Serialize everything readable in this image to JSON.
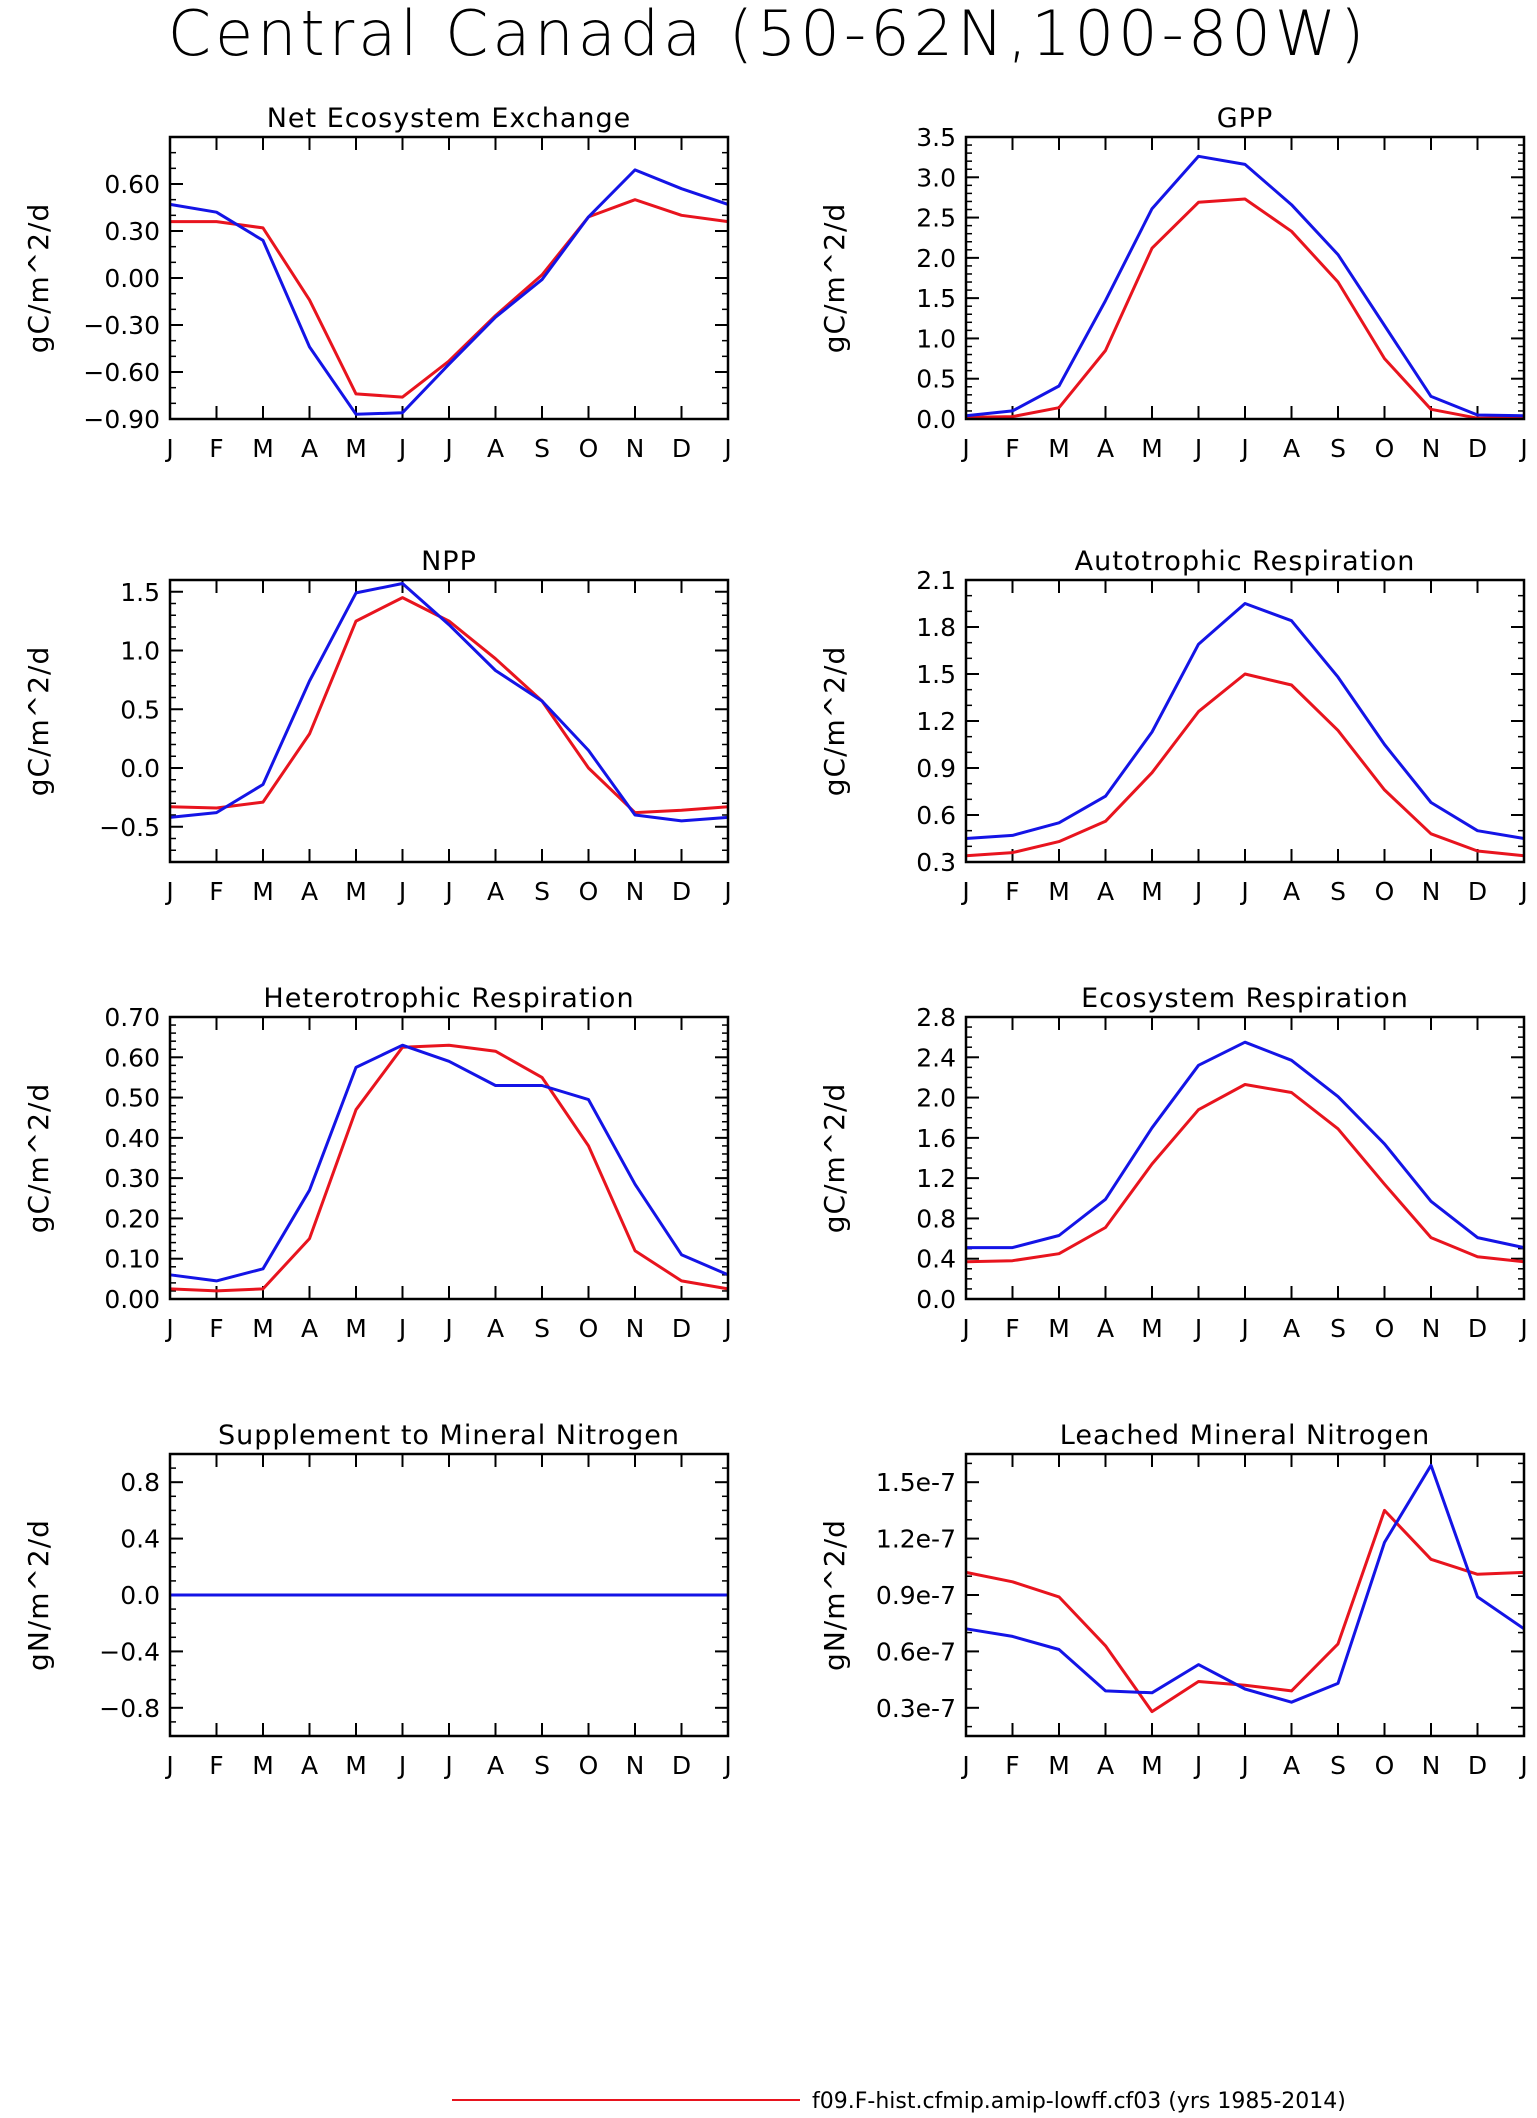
{
  "page": {
    "title": "Central Canada (50-62N,100-80W)"
  },
  "months": [
    "J",
    "F",
    "M",
    "A",
    "M",
    "J",
    "J",
    "A",
    "S",
    "O",
    "N",
    "D",
    "J"
  ],
  "legend": {
    "red_label": "f09.F-hist.cfmip.amip-lowff.cf03 (yrs 1985-2014)"
  },
  "colors": {
    "red": "#e8141e",
    "blue": "#1414e6",
    "axis": "#000000"
  },
  "chart_data": [
    {
      "type": "line",
      "title": "Net Ecosystem Exchange",
      "ylabel": "gC/m^2/d",
      "ylim": [
        -0.9,
        0.9
      ],
      "yticks": [
        -0.9,
        -0.6,
        -0.3,
        0.0,
        0.3,
        0.6
      ],
      "ytick_labels": [
        "-0.90",
        "-0.60",
        "-0.30",
        "0.00",
        "0.30",
        "0.60"
      ],
      "minor_step": 0.1,
      "series": [
        {
          "color": "red",
          "values": [
            0.36,
            0.36,
            0.32,
            -0.14,
            -0.74,
            -0.76,
            -0.53,
            -0.24,
            0.02,
            0.39,
            0.5,
            0.4,
            0.36
          ]
        },
        {
          "color": "blue",
          "values": [
            0.47,
            0.42,
            0.24,
            -0.44,
            -0.87,
            -0.86,
            -0.55,
            -0.25,
            -0.01,
            0.39,
            0.69,
            0.57,
            0.47
          ]
        }
      ]
    },
    {
      "type": "line",
      "title": "GPP",
      "ylabel": "gC/m^2/d",
      "ylim": [
        0.0,
        3.5
      ],
      "yticks": [
        0.0,
        0.5,
        1.0,
        1.5,
        2.0,
        2.5,
        3.0,
        3.5
      ],
      "ytick_labels": [
        "0.0",
        "0.5",
        "1.0",
        "1.5",
        "2.0",
        "2.5",
        "3.0",
        "3.5"
      ],
      "minor_step": 0.1,
      "series": [
        {
          "color": "red",
          "values": [
            0.02,
            0.03,
            0.14,
            0.85,
            2.12,
            2.69,
            2.73,
            2.33,
            1.7,
            0.75,
            0.12,
            0.01,
            0.02
          ]
        },
        {
          "color": "blue",
          "values": [
            0.04,
            0.1,
            0.41,
            1.47,
            2.61,
            3.26,
            3.16,
            2.66,
            2.04,
            1.16,
            0.28,
            0.05,
            0.04
          ]
        }
      ]
    },
    {
      "type": "line",
      "title": "NPP",
      "ylabel": "gC/m^2/d",
      "ylim": [
        -0.8,
        1.6
      ],
      "yticks": [
        -0.5,
        0.0,
        0.5,
        1.0,
        1.5
      ],
      "ytick_labels": [
        "-0.5",
        "0.0",
        "0.5",
        "1.0",
        "1.5"
      ],
      "minor_step": 0.1,
      "series": [
        {
          "color": "red",
          "values": [
            -0.33,
            -0.34,
            -0.29,
            0.29,
            1.25,
            1.45,
            1.25,
            0.93,
            0.57,
            0.0,
            -0.38,
            -0.36,
            -0.33
          ]
        },
        {
          "color": "blue",
          "values": [
            -0.42,
            -0.38,
            -0.14,
            0.74,
            1.49,
            1.57,
            1.22,
            0.83,
            0.57,
            0.15,
            -0.4,
            -0.45,
            -0.42
          ]
        }
      ]
    },
    {
      "type": "line",
      "title": "Autotrophic Respiration",
      "ylabel": "gC/m^2/d",
      "ylim": [
        0.3,
        2.1
      ],
      "yticks": [
        0.3,
        0.6,
        0.9,
        1.2,
        1.5,
        1.8,
        2.1
      ],
      "ytick_labels": [
        "0.3",
        "0.6",
        "0.9",
        "1.2",
        "1.5",
        "1.8",
        "2.1"
      ],
      "minor_step": 0.1,
      "series": [
        {
          "color": "red",
          "values": [
            0.34,
            0.36,
            0.43,
            0.56,
            0.87,
            1.26,
            1.5,
            1.43,
            1.14,
            0.76,
            0.48,
            0.37,
            0.34
          ]
        },
        {
          "color": "blue",
          "values": [
            0.45,
            0.47,
            0.55,
            0.72,
            1.13,
            1.69,
            1.95,
            1.84,
            1.48,
            1.05,
            0.68,
            0.5,
            0.45
          ]
        }
      ]
    },
    {
      "type": "line",
      "title": "Heterotrophic Respiration",
      "ylabel": "gC/m^2/d",
      "ylim": [
        0.0,
        0.7
      ],
      "yticks": [
        0.0,
        0.1,
        0.2,
        0.3,
        0.4,
        0.5,
        0.6,
        0.7
      ],
      "ytick_labels": [
        "0.00",
        "0.10",
        "0.20",
        "0.30",
        "0.40",
        "0.50",
        "0.60",
        "0.70"
      ],
      "minor_step": 0.02,
      "series": [
        {
          "color": "red",
          "values": [
            0.025,
            0.02,
            0.025,
            0.15,
            0.47,
            0.625,
            0.63,
            0.615,
            0.55,
            0.38,
            0.12,
            0.045,
            0.025
          ]
        },
        {
          "color": "blue",
          "values": [
            0.06,
            0.045,
            0.075,
            0.27,
            0.575,
            0.63,
            0.59,
            0.53,
            0.53,
            0.495,
            0.285,
            0.11,
            0.06
          ]
        }
      ]
    },
    {
      "type": "line",
      "title": "Ecosystem Respiration",
      "ylabel": "gC/m^2/d",
      "ylim": [
        0.0,
        2.8
      ],
      "yticks": [
        0.0,
        0.4,
        0.8,
        1.2,
        1.6,
        2.0,
        2.4,
        2.8
      ],
      "ytick_labels": [
        "0.0",
        "0.4",
        "0.8",
        "1.2",
        "1.6",
        "2.0",
        "2.4",
        "2.8"
      ],
      "minor_step": 0.1,
      "series": [
        {
          "color": "red",
          "values": [
            0.37,
            0.38,
            0.45,
            0.71,
            1.34,
            1.88,
            2.13,
            2.05,
            1.69,
            1.14,
            0.61,
            0.42,
            0.37
          ]
        },
        {
          "color": "blue",
          "values": [
            0.51,
            0.51,
            0.63,
            0.99,
            1.7,
            2.32,
            2.55,
            2.37,
            2.01,
            1.54,
            0.97,
            0.61,
            0.51
          ]
        }
      ]
    },
    {
      "type": "line",
      "title": "Supplement to Mineral Nitrogen",
      "ylabel": "gN/m^2/d",
      "ylim": [
        -1.0,
        1.0
      ],
      "yticks": [
        -0.8,
        -0.4,
        0.0,
        0.4,
        0.8
      ],
      "ytick_labels": [
        "-0.8",
        "-0.4",
        "0.0",
        "0.4",
        "0.8"
      ],
      "minor_step": 0.1,
      "series": [
        {
          "color": "red",
          "values": [
            0,
            0,
            0,
            0,
            0,
            0,
            0,
            0,
            0,
            0,
            0,
            0,
            0
          ]
        },
        {
          "color": "blue",
          "values": [
            0,
            0,
            0,
            0,
            0,
            0,
            0,
            0,
            0,
            0,
            0,
            0,
            0
          ]
        }
      ]
    },
    {
      "type": "line",
      "title": "Leached Mineral Nitrogen",
      "ylabel": "gN/m^2/d",
      "ylim": [
        1.5e-08,
        1.65e-07
      ],
      "yticks": [
        3e-08,
        6e-08,
        9e-08,
        1.2e-07,
        1.5e-07
      ],
      "ytick_labels": [
        "0.3e-7",
        "0.6e-7",
        "0.9e-7",
        "1.2e-7",
        "1.5e-7"
      ],
      "minor_step": 1e-08,
      "series": [
        {
          "color": "red",
          "values": [
            1.02e-07,
            9.7e-08,
            8.9e-08,
            6.3e-08,
            2.8e-08,
            4.4e-08,
            4.2e-08,
            3.9e-08,
            6.4e-08,
            1.35e-07,
            1.09e-07,
            1.01e-07,
            1.02e-07
          ]
        },
        {
          "color": "blue",
          "values": [
            7.2e-08,
            6.8e-08,
            6.1e-08,
            3.9e-08,
            3.8e-08,
            5.3e-08,
            4e-08,
            3.3e-08,
            4.3e-08,
            1.18e-07,
            1.59e-07,
            8.9e-08,
            7.2e-08
          ]
        }
      ]
    }
  ]
}
